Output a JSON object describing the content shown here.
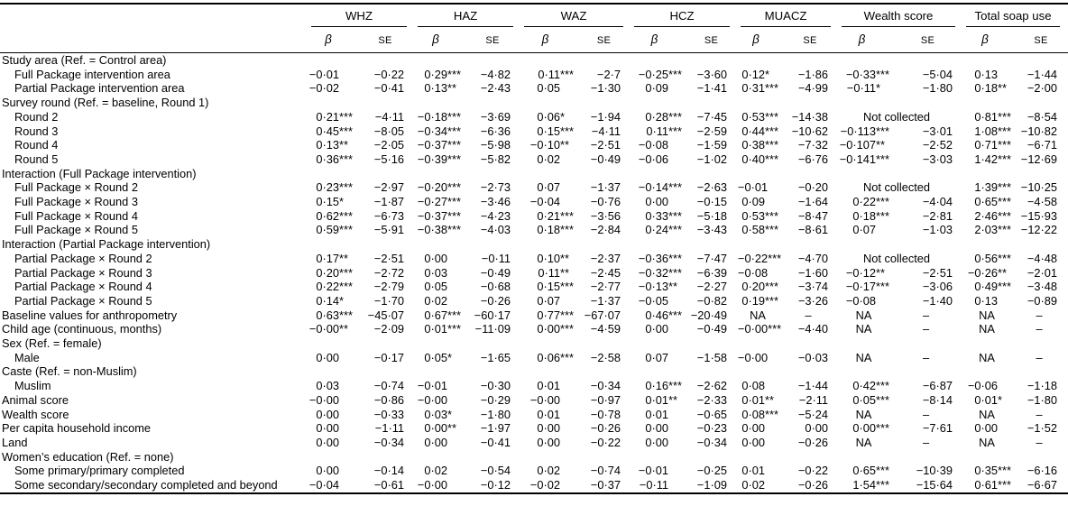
{
  "table": {
    "column_groups": [
      "WHZ",
      "HAZ",
      "WAZ",
      "HCZ",
      "MUACZ",
      "Wealth score",
      "Total soap use"
    ],
    "sub_headers": {
      "beta": "β",
      "se": "SE"
    },
    "na_text": "NA",
    "dash_text": "–",
    "not_collected_text": "Not collected",
    "rows": [
      {
        "label": "Study area (Ref. = Control area)",
        "indent": false,
        "cells": []
      },
      {
        "label": "Full Package intervention area",
        "indent": true,
        "cells": [
          "−0·01",
          "−0·22",
          "0·29***",
          "−4·82",
          "0·11***",
          "−2·7",
          "−0·25***",
          "−3·60",
          "0·12*",
          "−1·86",
          "−0·33***",
          "−5·04",
          "0·13",
          "−1·44"
        ]
      },
      {
        "label": "Partial Package intervention area",
        "indent": true,
        "cells": [
          "−0·02",
          "−0·41",
          "0·13**",
          "−2·43",
          "0·05",
          "−1·30",
          "0·09",
          "−1·41",
          "0·31***",
          "−4·99",
          "−0·11*",
          "−1·80",
          "0·18**",
          "−2·00"
        ]
      },
      {
        "label": "Survey round (Ref. = baseline, Round 1)",
        "indent": false,
        "cells": []
      },
      {
        "label": "Round 2",
        "indent": true,
        "cells": [
          "0·21***",
          "−4·11",
          "−0·18***",
          "−3·69",
          "0·06*",
          "−1·94",
          "0·28***",
          "−7·45",
          "0·53***",
          "−14·38",
          {
            "text": "Not collected",
            "span": 2
          },
          "0·81***",
          "−8·54"
        ]
      },
      {
        "label": "Round 3",
        "indent": true,
        "cells": [
          "0·45***",
          "−8·05",
          "−0·34***",
          "−6·36",
          "0·15***",
          "−4·11",
          "0·11***",
          "−2·59",
          "0·44***",
          "−10·62",
          "−0·113***",
          "−3·01",
          "1·08***",
          "−10·82"
        ]
      },
      {
        "label": "Round 4",
        "indent": true,
        "cells": [
          "0·13**",
          "−2·05",
          "−0·37***",
          "−5·98",
          "−0·10**",
          "−2·51",
          "−0·08",
          "−1·59",
          "0·38***",
          "−7·32",
          "−0·107**",
          "−2·52",
          "0·71***",
          "−6·71"
        ]
      },
      {
        "label": "Round 5",
        "indent": true,
        "cells": [
          "0·36***",
          "−5·16",
          "−0·39***",
          "−5·82",
          "0·02",
          "−0·49",
          "−0·06",
          "−1·02",
          "0·40***",
          "−6·76",
          "−0·141***",
          "−3·03",
          "1·42***",
          "−12·69"
        ]
      },
      {
        "label": "Interaction (Full Package intervention)",
        "indent": false,
        "cells": []
      },
      {
        "label": "Full Package × Round 2",
        "indent": true,
        "cells": [
          "0·23***",
          "−2·97",
          "−0·20***",
          "−2·73",
          "0·07",
          "−1·37",
          "−0·14***",
          "−2·63",
          "−0·01",
          "−0·20",
          {
            "text": "Not collected",
            "span": 2
          },
          "1·39***",
          "−10·25"
        ]
      },
      {
        "label": "Full Package × Round 3",
        "indent": true,
        "cells": [
          "0·15*",
          "−1·87",
          "−0·27***",
          "−3·46",
          "−0·04",
          "−0·76",
          "0·00",
          "−0·15",
          "0·09",
          "−1·64",
          "0·22***",
          "−4·04",
          "0·65***",
          "−4·58"
        ]
      },
      {
        "label": "Full Package × Round 4",
        "indent": true,
        "cells": [
          "0·62***",
          "−6·73",
          "−0·37***",
          "−4·23",
          "0·21***",
          "−3·56",
          "0·33***",
          "−5·18",
          "0·53***",
          "−8·47",
          "0·18***",
          "−2·81",
          "2·46***",
          "−15·93"
        ]
      },
      {
        "label": "Full Package × Round 5",
        "indent": true,
        "cells": [
          "0·59***",
          "−5·91",
          "−0·38***",
          "−4·03",
          "0·18***",
          "−2·84",
          "0·24***",
          "−3·43",
          "0·58***",
          "−8·61",
          "0·07",
          "−1·03",
          "2·03***",
          "−12·22"
        ]
      },
      {
        "label": "Interaction (Partial Package intervention)",
        "indent": false,
        "cells": []
      },
      {
        "label": "Partial Package × Round 2",
        "indent": true,
        "cells": [
          "0·17**",
          "−2·51",
          "0·00",
          "−0·11",
          "0·10**",
          "−2·37",
          "−0·36***",
          "−7·47",
          "−0·22***",
          "−4·70",
          {
            "text": "Not collected",
            "span": 2
          },
          "0·56***",
          "−4·48"
        ]
      },
      {
        "label": "Partial Package × Round 3",
        "indent": true,
        "cells": [
          "0·20***",
          "−2·72",
          "0·03",
          "−0·49",
          "0·11**",
          "−2·45",
          "−0·32***",
          "−6·39",
          "−0·08",
          "−1·60",
          "−0·12**",
          "−2·51",
          "−0·26**",
          "−2·01"
        ]
      },
      {
        "label": "Partial Package × Round 4",
        "indent": true,
        "cells": [
          "0·22***",
          "−2·79",
          "0·05",
          "−0·68",
          "0·15***",
          "−2·77",
          "−0·13**",
          "−2·27",
          "0·20***",
          "−3·74",
          "−0·17***",
          "−3·06",
          "0·49***",
          "−3·48"
        ]
      },
      {
        "label": "Partial Package × Round 5",
        "indent": true,
        "cells": [
          "0·14*",
          "−1·70",
          "0·02",
          "−0·26",
          "0·07",
          "−1·37",
          "−0·05",
          "−0·82",
          "0·19***",
          "−3·26",
          "−0·08",
          "−1·40",
          "0·13",
          "−0·89"
        ]
      },
      {
        "label": "Baseline values for anthropometry",
        "indent": false,
        "cells": [
          "0·63***",
          "−45·07",
          "0·67***",
          "−60·17",
          "0·77***",
          "−67·07",
          "0·46***",
          "−20·49",
          "NA",
          "–",
          "NA",
          "–",
          "NA",
          "–"
        ]
      },
      {
        "label": "Child age (continuous, months)",
        "indent": false,
        "cells": [
          "−0·00**",
          "−2·09",
          "0·01***",
          "−11·09",
          "0·00***",
          "−4·59",
          "0·00",
          "−0·49",
          "−0·00***",
          "−4·40",
          "NA",
          "–",
          "NA",
          "–"
        ]
      },
      {
        "label": "Sex (Ref. = female)",
        "indent": false,
        "cells": []
      },
      {
        "label": "Male",
        "indent": true,
        "cells": [
          "0·00",
          "−0·17",
          "0·05*",
          "−1·65",
          "0·06***",
          "−2·58",
          "0·07",
          "−1·58",
          "−0·00",
          "−0·03",
          "NA",
          "–",
          "NA",
          "–"
        ]
      },
      {
        "label": "Caste (Ref. = non-Muslim)",
        "indent": false,
        "cells": []
      },
      {
        "label": "Muslim",
        "indent": true,
        "cells": [
          "0·03",
          "−0·74",
          "−0·01",
          "−0·30",
          "0·01",
          "−0·34",
          "0·16***",
          "−2·62",
          "0·08",
          "−1·44",
          "0·42***",
          "−6·87",
          "−0·06",
          "−1·18"
        ]
      },
      {
        "label": "Animal score",
        "indent": false,
        "cells": [
          "−0·00",
          "−0·86",
          "−0·00",
          "−0·29",
          "−0·00",
          "−0·97",
          "0·01**",
          "−2·33",
          "0·01**",
          "−2·11",
          "0·05***",
          "−8·14",
          "0·01*",
          "−1·80"
        ]
      },
      {
        "label": "Wealth score",
        "indent": false,
        "cells": [
          "0·00",
          "−0·33",
          "0·03*",
          "−1·80",
          "0·01",
          "−0·78",
          "0·01",
          "−0·65",
          "0·08***",
          "−5·24",
          "NA",
          "–",
          "NA",
          "–"
        ]
      },
      {
        "label": "Per capita household income",
        "indent": false,
        "cells": [
          "0·00",
          "−1·11",
          "0·00**",
          "−1·97",
          "0·00",
          "−0·26",
          "0·00",
          "−0·23",
          "0·00",
          "0·00",
          "0·00***",
          "−7·61",
          "0·00",
          "−1·52"
        ]
      },
      {
        "label": "Land",
        "indent": false,
        "cells": [
          "0·00",
          "−0·34",
          "0·00",
          "−0·41",
          "0·00",
          "−0·22",
          "0·00",
          "−0·34",
          "0·00",
          "−0·26",
          "NA",
          "–",
          "NA",
          "–"
        ]
      },
      {
        "label": "Women’s education (Ref. = none)",
        "indent": false,
        "cells": []
      },
      {
        "label": "Some primary/primary completed",
        "indent": true,
        "cells": [
          "0·00",
          "−0·14",
          "0·02",
          "−0·54",
          "0·02",
          "−0·74",
          "−0·01",
          "−0·25",
          "0·01",
          "−0·22",
          "0·65***",
          "−10·39",
          "0·35***",
          "−6·16"
        ]
      },
      {
        "label": "Some secondary/secondary completed and beyond",
        "indent": true,
        "cells": [
          "−0·04",
          "−0·61",
          "−0·00",
          "−0·12",
          "−0·02",
          "−0·37",
          "−0·11",
          "−1·09",
          "0·02",
          "−0·26",
          "1·54***",
          "−15·64",
          "0·61***",
          "−6·67"
        ]
      }
    ]
  }
}
